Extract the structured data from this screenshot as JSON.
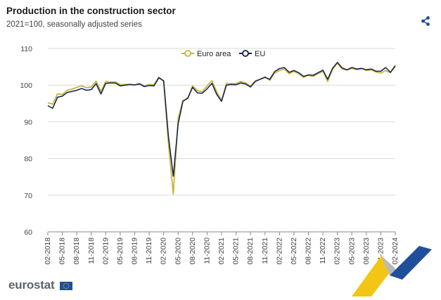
{
  "header": {
    "title": "Production in the construction sector",
    "subtitle": "2021=100, seasonally adjusted series"
  },
  "share_icon": "share-icon",
  "logo": {
    "text": "eurostat"
  },
  "chart_data": {
    "type": "line",
    "title": "Production in the construction sector",
    "subtitle": "2021=100, seasonally adjusted series",
    "xlabel": "",
    "ylabel": "",
    "ylim": [
      60,
      110
    ],
    "yticks": [
      60,
      70,
      80,
      90,
      100,
      110
    ],
    "grid": "horizontal",
    "legend": "top-center",
    "xtick_labels": [
      "02-2018",
      "05-2018",
      "08-2018",
      "11-2018",
      "02-2019",
      "05-2019",
      "08-2019",
      "11-2019",
      "02-2020",
      "05-2020",
      "08-2020",
      "11-2020",
      "02-2021",
      "05-2021",
      "08-2021",
      "11-2021",
      "02-2022",
      "05-2022",
      "08-2022",
      "11-2022",
      "02-2023",
      "05-2023",
      "08-2023",
      "11-2023",
      "02-2024"
    ],
    "x": [
      "02-2018",
      "03-2018",
      "04-2018",
      "05-2018",
      "06-2018",
      "07-2018",
      "08-2018",
      "09-2018",
      "10-2018",
      "11-2018",
      "12-2018",
      "01-2019",
      "02-2019",
      "03-2019",
      "04-2019",
      "05-2019",
      "06-2019",
      "07-2019",
      "08-2019",
      "09-2019",
      "10-2019",
      "11-2019",
      "12-2019",
      "01-2020",
      "02-2020",
      "03-2020",
      "04-2020",
      "05-2020",
      "06-2020",
      "07-2020",
      "08-2020",
      "09-2020",
      "10-2020",
      "11-2020",
      "12-2020",
      "01-2021",
      "02-2021",
      "03-2021",
      "04-2021",
      "05-2021",
      "06-2021",
      "07-2021",
      "08-2021",
      "09-2021",
      "10-2021",
      "11-2021",
      "12-2021",
      "01-2022",
      "02-2022",
      "03-2022",
      "04-2022",
      "05-2022",
      "06-2022",
      "07-2022",
      "08-2022",
      "09-2022",
      "10-2022",
      "11-2022",
      "12-2022",
      "01-2023",
      "02-2023",
      "03-2023",
      "04-2023",
      "05-2023",
      "06-2023",
      "07-2023",
      "08-2023",
      "09-2023",
      "10-2023",
      "11-2023",
      "12-2023",
      "01-2024",
      "02-2024"
    ],
    "series": [
      {
        "name": "Euro area",
        "color": "#c9b437",
        "values": [
          95.2,
          94.8,
          97.6,
          97.5,
          98.6,
          98.9,
          99.4,
          99.8,
          99.3,
          99.5,
          101.1,
          98.3,
          101.0,
          100.8,
          100.9,
          100.1,
          100.2,
          100.2,
          100.0,
          100.5,
          99.8,
          100.2,
          100.1,
          102.2,
          101.0,
          84.0,
          70.3,
          91.0,
          95.8,
          96.3,
          99.8,
          98.5,
          98.2,
          99.8,
          101.2,
          98.2,
          95.8,
          100.5,
          100.4,
          100.4,
          101.0,
          100.6,
          99.7,
          101.2,
          101.6,
          102.3,
          101.3,
          103.3,
          104.0,
          104.4,
          103.1,
          103.8,
          103.1,
          102.1,
          102.7,
          102.4,
          103.1,
          103.8,
          101.0,
          104.3,
          106.0,
          104.4,
          104.1,
          104.6,
          104.2,
          104.5,
          104.0,
          104.2,
          103.6,
          103.3,
          104.0,
          103.4,
          105.5
        ]
      },
      {
        "name": "EU",
        "color": "#0e1f4d",
        "values": [
          94.4,
          93.7,
          96.7,
          97.0,
          98.0,
          98.3,
          98.6,
          99.1,
          98.6,
          98.8,
          100.4,
          97.6,
          100.5,
          100.6,
          100.6,
          99.8,
          100.0,
          100.2,
          100.1,
          100.3,
          99.6,
          99.9,
          99.8,
          102.0,
          101.2,
          86.0,
          75.2,
          89.5,
          95.6,
          96.5,
          99.4,
          97.9,
          97.8,
          99.0,
          100.5,
          97.5,
          95.6,
          100.0,
          100.2,
          100.1,
          100.6,
          100.3,
          99.5,
          101.0,
          101.6,
          102.1,
          101.6,
          103.7,
          104.5,
          104.8,
          103.5,
          104.0,
          103.4,
          102.4,
          102.8,
          102.7,
          103.4,
          104.1,
          101.6,
          104.6,
          106.2,
          104.7,
          104.2,
          104.8,
          104.4,
          104.6,
          104.2,
          104.4,
          103.8,
          103.8,
          104.8,
          103.5,
          105.2
        ]
      }
    ]
  }
}
